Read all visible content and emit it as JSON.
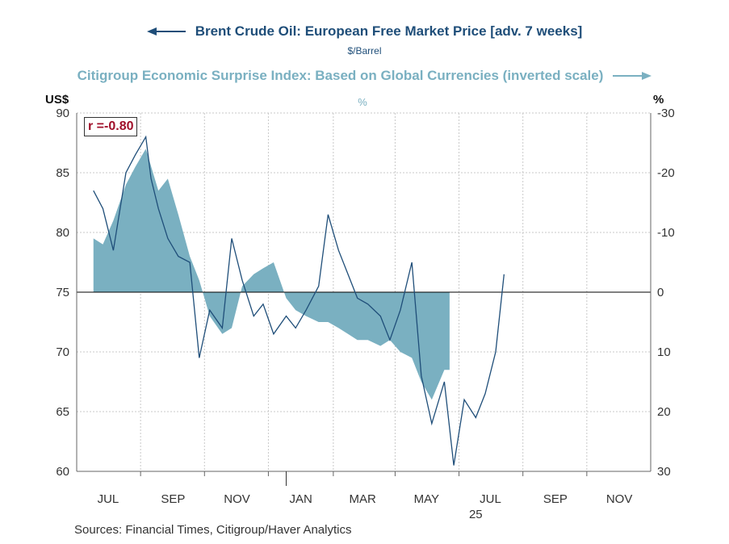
{
  "titles": {
    "left_series": "Brent Crude Oil: European Free Market Price [adv. 7 weeks]",
    "left_unit": "$/Barrel",
    "right_series": "Citigroup Economic Surprise Index: Based on Global Currencies (inverted scale)",
    "right_center_unit": "%"
  },
  "axis_units": {
    "left": "US$",
    "right": "%"
  },
  "annotation": "r =-0.80",
  "sources": "Sources:  Financial Times, Citigroup/Haver Analytics",
  "colors": {
    "brent": "#1f4e79",
    "surprise": "#7ab0c1",
    "annotation": "#a0102a",
    "grid": "#c8c8c8"
  },
  "chart_data": {
    "type": "line",
    "x_ticks": [
      "JUL",
      "SEP",
      "NOV",
      "JAN",
      "MAR",
      "MAY",
      "JUL",
      "SEP",
      "NOV"
    ],
    "year_label": "25",
    "y_left": {
      "label": "US$",
      "ticks": [
        60,
        65,
        70,
        75,
        80,
        85,
        90
      ],
      "range": [
        60,
        90
      ]
    },
    "y_right": {
      "label": "%",
      "ticks": [
        -30,
        -20,
        -10,
        0,
        10,
        20,
        30
      ],
      "range": [
        30,
        -30
      ],
      "inverted": true
    },
    "series": [
      {
        "name": "Brent Crude Oil: European Free Market Price [adv. 7 weeks]",
        "axis": "left",
        "type": "line",
        "x": [
          "2024-07-01",
          "2024-07-10",
          "2024-07-20",
          "2024-08-01",
          "2024-08-10",
          "2024-08-20",
          "2024-08-25",
          "2024-09-01",
          "2024-09-10",
          "2024-09-20",
          "2024-10-01",
          "2024-10-10",
          "2024-10-20",
          "2024-11-01",
          "2024-11-10",
          "2024-11-20",
          "2024-12-01",
          "2024-12-10",
          "2024-12-20",
          "2025-01-01",
          "2025-01-10",
          "2025-01-20",
          "2025-02-01",
          "2025-02-10",
          "2025-02-20",
          "2025-03-01",
          "2025-03-10",
          "2025-03-20",
          "2025-04-01",
          "2025-04-10",
          "2025-04-20",
          "2025-05-01",
          "2025-05-10",
          "2025-05-20",
          "2025-06-01",
          "2025-06-10",
          "2025-06-20",
          "2025-07-01",
          "2025-07-10",
          "2025-07-20",
          "2025-07-28"
        ],
        "values": [
          83.5,
          82.0,
          78.5,
          85.0,
          86.5,
          88.0,
          84.5,
          82.0,
          79.5,
          78.0,
          77.5,
          69.5,
          73.5,
          72.0,
          79.5,
          76.0,
          73.0,
          74.0,
          71.5,
          73.0,
          72.0,
          73.5,
          75.5,
          81.5,
          78.5,
          76.5,
          74.5,
          74.0,
          73.0,
          71.0,
          73.5,
          77.5,
          68.0,
          64.0,
          67.5,
          60.5,
          66.0,
          64.5,
          66.5,
          70.0,
          76.5
        ]
      },
      {
        "name": "Citigroup Economic Surprise Index: Based on Global Currencies (inverted scale)",
        "axis": "right",
        "type": "area",
        "x": [
          "2024-07-01",
          "2024-07-10",
          "2024-07-20",
          "2024-08-01",
          "2024-08-10",
          "2024-08-20",
          "2024-09-01",
          "2024-09-10",
          "2024-09-20",
          "2024-10-01",
          "2024-10-10",
          "2024-10-20",
          "2024-11-01",
          "2024-11-10",
          "2024-11-20",
          "2024-12-01",
          "2024-12-10",
          "2024-12-20",
          "2025-01-01",
          "2025-01-10",
          "2025-01-20",
          "2025-02-01",
          "2025-02-10",
          "2025-02-20",
          "2025-03-01",
          "2025-03-10",
          "2025-03-20",
          "2025-04-01",
          "2025-04-10",
          "2025-04-20",
          "2025-05-01",
          "2025-05-10",
          "2025-05-20",
          "2025-06-01",
          "2025-06-06"
        ],
        "values": [
          -9,
          -8,
          -12,
          -18,
          -21,
          -24,
          -17,
          -19,
          -13,
          -6,
          -2,
          4,
          7,
          6,
          -1,
          -3,
          -4,
          -5,
          1,
          3,
          4,
          5,
          5,
          6,
          7,
          8,
          8,
          9,
          8,
          10,
          11,
          15,
          18,
          13,
          13
        ]
      }
    ]
  }
}
